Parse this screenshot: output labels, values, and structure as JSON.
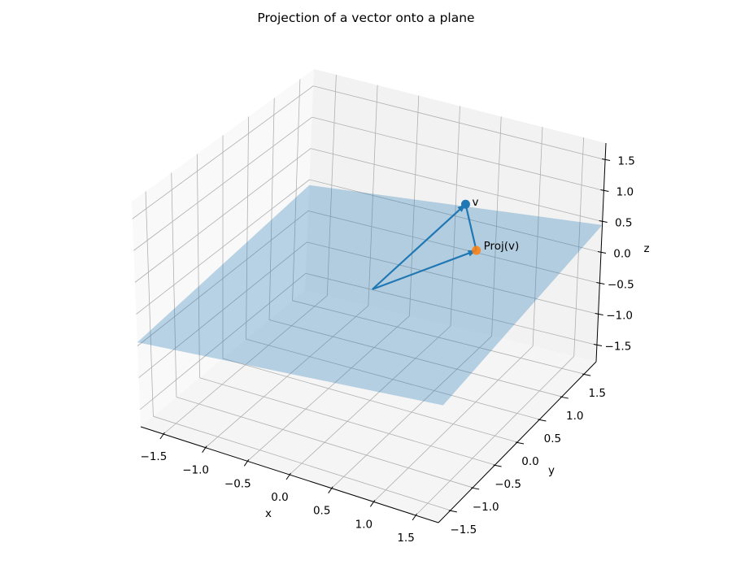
{
  "chart_data": {
    "type": "3d-surface-vectors",
    "title": "Projection of a vector onto a plane",
    "xlabel": "x",
    "ylabel": "y",
    "zlabel": "z",
    "xlim": [
      -1.77,
      1.77
    ],
    "ylim": [
      -1.77,
      1.77
    ],
    "zlim": [
      -1.77,
      1.77
    ],
    "grid": true,
    "ticks": {
      "x": [
        "−1.5",
        "−1.0",
        "−0.5",
        "0.0",
        "0.5",
        "1.0",
        "1.5"
      ],
      "y": [
        "−1.5",
        "−1.0",
        "−0.5",
        "0.0",
        "0.5",
        "1.0",
        "1.5"
      ],
      "z": [
        "−1.5",
        "−1.0",
        "−0.5",
        "0.0",
        "0.5",
        "1.0",
        "1.5"
      ]
    },
    "tick_values": [
      -1.5,
      -1.0,
      -0.5,
      0.0,
      0.5,
      1.0,
      1.5
    ],
    "plane": {
      "equation": "z = 0.15x + 0.1y",
      "a": 0.15,
      "b": 0.1,
      "color": "#1f77b4",
      "alpha": 0.3
    },
    "origin": [
      0,
      0,
      0
    ],
    "vector": {
      "label": "v",
      "point": [
        0.57,
        0.93,
        0.95
      ],
      "color": "#1f77b4"
    },
    "projection": {
      "label": "Proj(v)",
      "point": [
        0.68,
        1.0,
        0.2
      ],
      "color": "#ff7f0e"
    }
  }
}
